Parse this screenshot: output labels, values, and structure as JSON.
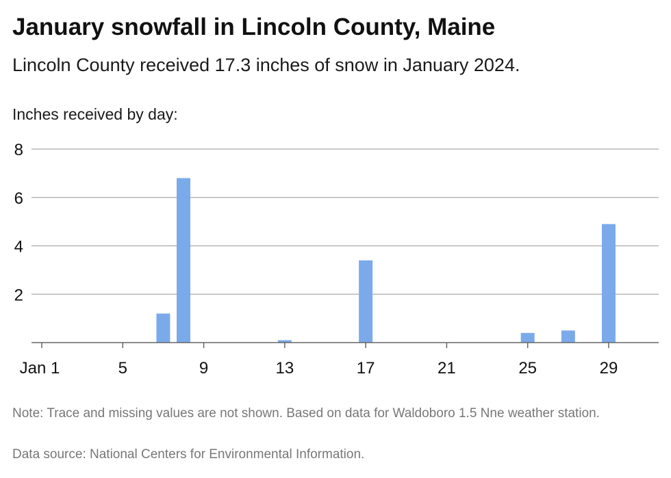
{
  "title": "January snowfall in Lincoln County, Maine",
  "subtitle": "Lincoln County received 17.3 inches of snow in January 2024.",
  "note": "Note: Trace and missing values are not shown. Based on data for Waldoboro 1.5 Nne weather station.",
  "source": "Data source: National Centers for Environmental Information.",
  "chart_data": {
    "type": "bar",
    "title": "January snowfall in Lincoln County, Maine",
    "ylabel": "Inches received by day:",
    "xlabel": "",
    "ylim": [
      0,
      8
    ],
    "xlim": [
      1,
      31
    ],
    "yticks": [
      2,
      4,
      6,
      8
    ],
    "xticks": [
      1,
      5,
      9,
      13,
      17,
      21,
      25,
      29
    ],
    "xtick_labels": [
      "Jan 1",
      "5",
      "9",
      "13",
      "17",
      "21",
      "25",
      "29"
    ],
    "grid": true,
    "bar_color": "#7BAAEB",
    "grid_color": "#aaaaaa",
    "x": [
      7,
      8,
      13,
      17,
      25,
      27,
      29
    ],
    "values": [
      1.2,
      6.8,
      0.1,
      3.4,
      0.4,
      0.5,
      4.9
    ]
  }
}
